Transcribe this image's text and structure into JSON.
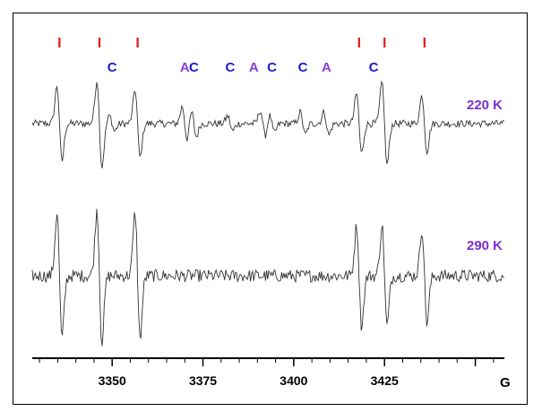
{
  "chart_data": {
    "type": "line",
    "title": "",
    "xlabel": "G",
    "ylabel": "",
    "xlim": [
      3328,
      3458
    ],
    "x_ticks": [
      3350,
      3375,
      3400,
      3425
    ],
    "x_tick_labels": [
      "3350",
      "3375",
      "3400",
      "3425"
    ],
    "grid": false,
    "series": [
      {
        "name": "220 K",
        "color": "#7b2fd0",
        "trace_color": "#333333",
        "lines": [
          {
            "x": 3335.5,
            "amp": 1.0
          },
          {
            "x": 3346.5,
            "amp": 1.15
          },
          {
            "x": 3357.0,
            "amp": 0.9
          },
          {
            "x": 3418.0,
            "amp": 0.8
          },
          {
            "x": 3425.0,
            "amp": 1.1
          },
          {
            "x": 3436.0,
            "amp": 0.75
          },
          {
            "x": 3350.0,
            "amp": 0.2
          },
          {
            "x": 3370.0,
            "amp": 0.45
          },
          {
            "x": 3372.5,
            "amp": 0.35
          },
          {
            "x": 3382.5,
            "amp": 0.2
          },
          {
            "x": 3391.5,
            "amp": 0.35
          },
          {
            "x": 3394.0,
            "amp": 0.25
          },
          {
            "x": 3402.5,
            "amp": 0.3
          },
          {
            "x": 3409.0,
            "amp": 0.3
          }
        ]
      },
      {
        "name": "290 K",
        "color": "#7b2fd0",
        "trace_color": "#333333",
        "lines": [
          {
            "x": 3335.5,
            "amp": 1.0
          },
          {
            "x": 3346.5,
            "amp": 1.05
          },
          {
            "x": 3357.0,
            "amp": 1.0
          },
          {
            "x": 3418.0,
            "amp": 0.8
          },
          {
            "x": 3425.0,
            "amp": 0.8
          },
          {
            "x": 3436.0,
            "amp": 0.75
          }
        ]
      }
    ],
    "annotations": [
      {
        "text": "I",
        "x": 3335.5,
        "color": "#e02020"
      },
      {
        "text": "I",
        "x": 3346.5,
        "color": "#e02020"
      },
      {
        "text": "I",
        "x": 3357.0,
        "color": "#e02020"
      },
      {
        "text": "I",
        "x": 3418.0,
        "color": "#e02020"
      },
      {
        "text": "I",
        "x": 3425.0,
        "color": "#e02020"
      },
      {
        "text": "I",
        "x": 3436.0,
        "color": "#e02020"
      },
      {
        "text": "C",
        "x": 3350.0,
        "color": "#1a1acc"
      },
      {
        "text": "A",
        "x": 3370.0,
        "color": "#8a3fd0"
      },
      {
        "text": "C",
        "x": 3372.5,
        "color": "#1a1acc"
      },
      {
        "text": "C",
        "x": 3382.5,
        "color": "#1a1acc"
      },
      {
        "text": "A",
        "x": 3389.0,
        "color": "#8a3fd0"
      },
      {
        "text": "C",
        "x": 3394.0,
        "color": "#1a1acc"
      },
      {
        "text": "C",
        "x": 3402.5,
        "color": "#1a1acc"
      },
      {
        "text": "A",
        "x": 3409.0,
        "color": "#8a3fd0"
      },
      {
        "text": "C",
        "x": 3422.0,
        "color": "#1a1acc"
      }
    ]
  }
}
